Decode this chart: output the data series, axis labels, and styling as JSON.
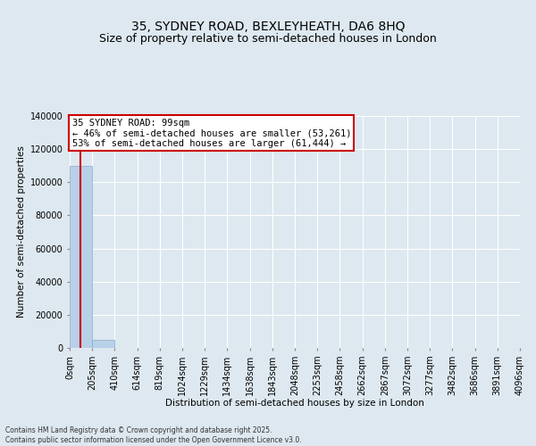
{
  "title_line1": "35, SYDNEY ROAD, BEXLEYHEATH, DA6 8HQ",
  "title_line2": "Size of property relative to semi-detached houses in London",
  "xlabel": "Distribution of semi-detached houses by size in London",
  "ylabel": "Number of semi-detached properties",
  "property_label": "35 SYDNEY ROAD: 99sqm",
  "annotation_smaller": "← 46% of semi-detached houses are smaller (53,261)",
  "annotation_larger": "53% of semi-detached houses are larger (61,444) →",
  "footer": "Contains HM Land Registry data © Crown copyright and database right 2025.\nContains public sector information licensed under the Open Government Licence v3.0.",
  "bin_edges": [
    0,
    205,
    410,
    614,
    819,
    1024,
    1229,
    1434,
    1638,
    1843,
    2048,
    2253,
    2458,
    2662,
    2867,
    3072,
    3277,
    3482,
    3686,
    3891,
    4096
  ],
  "bin_labels": [
    "0sqm",
    "205sqm",
    "410sqm",
    "614sqm",
    "819sqm",
    "1024sqm",
    "1229sqm",
    "1434sqm",
    "1638sqm",
    "1843sqm",
    "2048sqm",
    "2253sqm",
    "2458sqm",
    "2662sqm",
    "2867sqm",
    "3072sqm",
    "3277sqm",
    "3482sqm",
    "3686sqm",
    "3891sqm",
    "4096sqm"
  ],
  "bar_heights": [
    110000,
    4700,
    200,
    50,
    20,
    10,
    5,
    3,
    2,
    1,
    1,
    0,
    0,
    0,
    0,
    0,
    0,
    0,
    0,
    0
  ],
  "bar_color": "#b8d0e8",
  "bar_edge_color": "#88aacc",
  "vline_color": "#cc0000",
  "vline_x": 99,
  "annotation_box_edge_color": "#cc0000",
  "bg_color": "#dde8f0",
  "grid_color": "#ffffff",
  "ylim": [
    0,
    140000
  ],
  "yticks": [
    0,
    20000,
    40000,
    60000,
    80000,
    100000,
    120000,
    140000
  ],
  "title_fontsize": 10,
  "subtitle_fontsize": 9,
  "axis_label_fontsize": 7.5,
  "tick_fontsize": 7,
  "annot_fontsize": 7.5,
  "footer_fontsize": 5.5
}
